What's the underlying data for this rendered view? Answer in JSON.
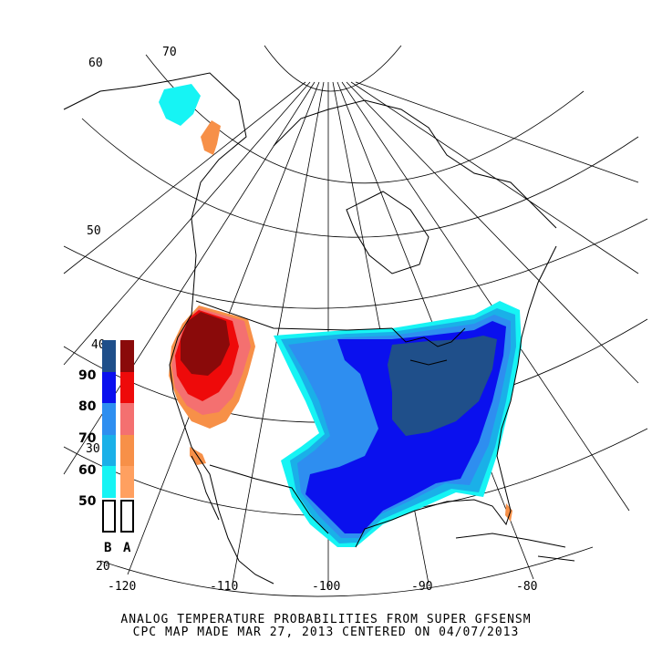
{
  "title": {
    "line1": "ANALOG TEMPERATURE PROBABILITIES FROM SUPER GFSENSM",
    "line2": "CPC MAP MADE MAR 27, 2013 CENTERED ON 04/07/2013"
  },
  "lon_labels": [
    "-120",
    "-110",
    "-100",
    "-90",
    "-80"
  ],
  "lat_labels": [
    "60",
    "70",
    "50",
    "40",
    "30",
    "20"
  ],
  "legend": {
    "levels": [
      "90",
      "80",
      "70",
      "60",
      "50"
    ],
    "below_label": "B",
    "above_label": "A",
    "below_colors": [
      "#1f4f8a",
      "#0a10ee",
      "#2e8ef0",
      "#1ab0e8",
      "#16f4f4"
    ],
    "above_colors": [
      "#8a0a0a",
      "#ee0a0a",
      "#f47070",
      "#f79048",
      "#ffa060"
    ]
  },
  "colors": {
    "below_40": "#1f4f8a",
    "below_30": "#0a10ee",
    "below_20": "#2e8ef0",
    "below_10": "#1ab0e8",
    "below_0": "#16f4f4",
    "above_40": "#8a0a0a",
    "above_30": "#ee0a0a",
    "above_20": "#f47070",
    "above_10": "#f79048"
  }
}
